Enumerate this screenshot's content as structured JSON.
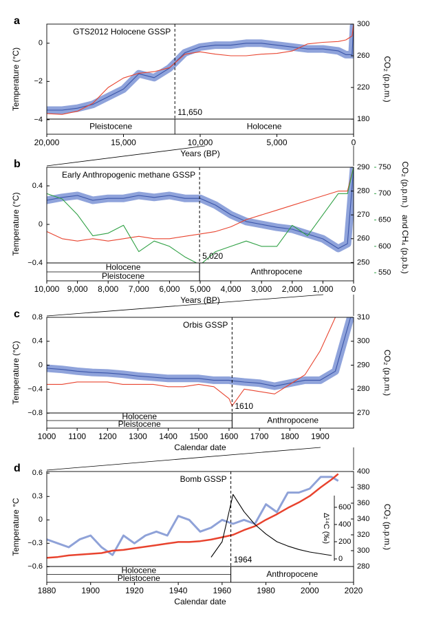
{
  "chart_data": [
    {
      "type": "line",
      "label": "a",
      "annotation": "GTS2012 Holocene GSSP",
      "x_label": "Years (BP)",
      "y_label": "Temperature (°C)",
      "y2_label": "CO₂ (p.p.m.)",
      "y_color": "#4a6bc4",
      "y2_color": "#e8432e",
      "xlim": [
        20000,
        0
      ],
      "xticks": [
        {
          "value": 20000,
          "label": "20,000"
        },
        {
          "value": 15000,
          "label": "15,000"
        },
        {
          "value": 10000,
          "label": "10,000"
        },
        {
          "value": 5000,
          "label": "5,000"
        },
        0
      ],
      "ylim": [
        -4.76,
        1.0
      ],
      "yticks": [
        {
          "value": -4,
          "label": "−4"
        },
        {
          "value": -2,
          "label": "−2"
        },
        0
      ],
      "y2lim": [
        161,
        300
      ],
      "y2ticks": [
        180,
        220,
        260,
        300
      ],
      "marker": {
        "value": 11650,
        "label": "11,650"
      },
      "regions": [
        {
          "label": "Pleistocene",
          "from": 20000,
          "to": 11650
        },
        {
          "label": "Holocene",
          "from": 11650,
          "to": 0
        }
      ],
      "x": [
        20000,
        19000,
        18000,
        17000,
        16000,
        15000,
        14000,
        13000,
        12000,
        11000,
        10000,
        9000,
        8000,
        7000,
        6000,
        5000,
        4000,
        3000,
        2000,
        1000,
        500,
        100,
        0
      ],
      "series": [
        {
          "color": "#3b55a8",
          "halo_color": "#8fa3db",
          "axis": "y",
          "values": [
            -3.5,
            -3.5,
            -3.4,
            -3.2,
            -2.8,
            -2.4,
            -1.6,
            -1.8,
            -1.3,
            -0.5,
            -0.2,
            -0.1,
            -0.1,
            0,
            0,
            -0.1,
            -0.2,
            -0.3,
            -0.3,
            -0.4,
            -0.6,
            -0.6,
            0.9
          ]
        },
        {
          "color": "#e8432e",
          "axis": "y2",
          "values": [
            187,
            186,
            190,
            200,
            220,
            232,
            238,
            240,
            245,
            262,
            265,
            262,
            260,
            260,
            262,
            263,
            266,
            275,
            277,
            278,
            280,
            285,
            300
          ]
        }
      ]
    },
    {
      "type": "line",
      "label": "b",
      "annotation": "Early Anthropogenic methane GSSP",
      "x_label": "Years (BP)",
      "y_label": "Temperature (°C)",
      "y2_label": "CO₂ (p.p.m.)",
      "y2_y3_joiner": "and",
      "y3_label": "CH₄ (p.p.b.)",
      "y_color": "#4a6bc4",
      "y2_color": "#e8432e",
      "y3_color": "#2ea043",
      "xlim": [
        10000,
        0
      ],
      "xticks": [
        {
          "value": 10000,
          "label": "10,000"
        },
        {
          "value": 9000,
          "label": "9,000"
        },
        {
          "value": 8000,
          "label": "8,000"
        },
        {
          "value": 7000,
          "label": "7,000"
        },
        {
          "value": 6000,
          "label": "6,000"
        },
        {
          "value": 5000,
          "label": "5,000"
        },
        {
          "value": 4000,
          "label": "4,000"
        },
        {
          "value": 3000,
          "label": "3,000"
        },
        {
          "value": 2000,
          "label": "2,000"
        },
        {
          "value": 1000,
          "label": "1,000"
        },
        0
      ],
      "ylim": [
        -0.586,
        0.593
      ],
      "yticks": [
        {
          "value": -0.4,
          "label": "−0.4"
        },
        0,
        0.4
      ],
      "y2lim": [
        242.3,
        290
      ],
      "y2ticks": [
        250,
        260,
        270,
        280,
        290
      ],
      "y3lim": [
        534.6,
        750
      ],
      "y3ticks": [
        550,
        600,
        650,
        700,
        750
      ],
      "marker": {
        "value": 5020,
        "label": "5,020"
      },
      "regions": [
        {
          "label": "Holocene",
          "from": 10000,
          "to": 5020
        },
        {
          "label": "Pleistocene",
          "from": 10000,
          "to": 5020
        },
        {
          "label": "Anthropocene",
          "from": 5020,
          "to": 0
        }
      ],
      "x": [
        10000,
        9500,
        9000,
        8500,
        8000,
        7500,
        7000,
        6500,
        6000,
        5500,
        5000,
        4500,
        4000,
        3500,
        3000,
        2500,
        2000,
        1500,
        1000,
        500,
        200,
        0
      ],
      "series": [
        {
          "color": "#3b55a8",
          "halo_color": "#8fa3db",
          "axis": "y",
          "values": [
            0.25,
            0.28,
            0.3,
            0.25,
            0.27,
            0.27,
            0.3,
            0.28,
            0.3,
            0.27,
            0.27,
            0.2,
            0.1,
            0.03,
            0,
            -0.03,
            -0.05,
            -0.1,
            -0.15,
            -0.25,
            -0.2,
            0.58
          ]
        },
        {
          "color": "#e8432e",
          "axis": "y2",
          "values": [
            263,
            260,
            259,
            260,
            259,
            260,
            261,
            260,
            260,
            261,
            262,
            263,
            265,
            268,
            270,
            272,
            274,
            276,
            278,
            280,
            280,
            290
          ]
        },
        {
          "color": "#2ea043",
          "axis": "y3",
          "values": [
            700,
            690,
            660,
            620,
            625,
            640,
            590,
            610,
            600,
            580,
            565,
            590,
            600,
            610,
            600,
            600,
            640,
            620,
            660,
            700,
            700,
            750
          ]
        }
      ]
    },
    {
      "type": "line",
      "label": "c",
      "annotation": "Orbis GSSP",
      "x_label": "Calendar date",
      "y_label": "Temperature (°C)",
      "y2_label": "CO₂ (p.p.m.)",
      "y_color": "#4a6bc4",
      "y2_color": "#e8432e",
      "xlim": [
        1000,
        2010
      ],
      "xticks": [
        1000,
        1100,
        1200,
        1300,
        1400,
        1500,
        1600,
        1700,
        1800,
        1900
      ],
      "ylim": [
        -1.05,
        0.8
      ],
      "yticks": [
        {
          "value": -0.8,
          "label": "−0.8"
        },
        {
          "value": -0.4,
          "label": "−0.4"
        },
        0,
        0.4,
        0.8
      ],
      "y2lim": [
        263.7,
        310
      ],
      "y2ticks": [
        270,
        280,
        290,
        300,
        310
      ],
      "marker": 1610,
      "regions": [
        {
          "label": "Holocene",
          "from": 1000,
          "to": 1610
        },
        {
          "label": "Pleistocene",
          "from": 1000,
          "to": 1610
        },
        {
          "label": "Anthropocene",
          "from": 1610,
          "to": 2010
        }
      ],
      "x": [
        1000,
        1050,
        1100,
        1150,
        1200,
        1250,
        1300,
        1350,
        1400,
        1450,
        1500,
        1550,
        1600,
        1610,
        1650,
        1700,
        1750,
        1800,
        1850,
        1900,
        1950,
        2000
      ],
      "series": [
        {
          "color": "#3b55a8",
          "halo_color": "#8fa3db",
          "axis": "y",
          "values": [
            -0.05,
            -0.07,
            -0.1,
            -0.12,
            -0.13,
            -0.15,
            -0.18,
            -0.2,
            -0.22,
            -0.22,
            -0.22,
            -0.25,
            -0.25,
            -0.26,
            -0.28,
            -0.3,
            -0.35,
            -0.3,
            -0.25,
            -0.25,
            -0.1,
            0.8
          ]
        },
        {
          "color": "#e8432e",
          "axis": "y2",
          "values": [
            282,
            282,
            283,
            283,
            283,
            282,
            282,
            282,
            281,
            281,
            282,
            281,
            276,
            273,
            280,
            279,
            278,
            282,
            286,
            296,
            310,
            null
          ]
        }
      ]
    },
    {
      "type": "line",
      "label": "d",
      "annotation": "Bomb GSSP",
      "x_label": "Calendar date",
      "y_label": "Temperature °C",
      "y2_label": "CO₂ (p.p.m.)",
      "y3_label": "Δ¹⁴C (‰)",
      "y_color": "#4a6bc4",
      "y2_color": "#e8432e",
      "y3_color": "#000000",
      "xlim": [
        1880,
        2020
      ],
      "xticks": [
        1880,
        1900,
        1920,
        1940,
        1960,
        1980,
        2000,
        2020
      ],
      "ylim": [
        -0.8,
        0.62
      ],
      "yticks": [
        {
          "value": -0.6,
          "label": "−0.6"
        },
        {
          "value": -0.3,
          "label": "−0.3"
        },
        0,
        0.3,
        0.6
      ],
      "y2lim": [
        260,
        400
      ],
      "y2ticks": [
        280,
        300,
        320,
        340,
        360,
        380,
        400
      ],
      "y3lim": [
        -272,
        1016
      ],
      "y3ticks": [
        0,
        200,
        400,
        600
      ],
      "marker": 1964,
      "regions": [
        {
          "label": "Holocene",
          "from": 1880,
          "to": 1964
        },
        {
          "label": "Pleistocene",
          "from": 1880,
          "to": 1964
        },
        {
          "label": "Anthropocene",
          "from": 1964,
          "to": 2020
        }
      ],
      "x": [
        1880,
        1885,
        1890,
        1895,
        1900,
        1905,
        1910,
        1915,
        1920,
        1925,
        1930,
        1935,
        1940,
        1945,
        1950,
        1955,
        1960,
        1965,
        1970,
        1975,
        1980,
        1985,
        1990,
        1995,
        2000,
        2005,
        2010,
        2013
      ],
      "series": [
        {
          "color": "#8fa2d8",
          "axis": "y",
          "width": 3,
          "values": [
            -0.25,
            -0.3,
            -0.35,
            -0.25,
            -0.2,
            -0.35,
            -0.45,
            -0.2,
            -0.3,
            -0.2,
            -0.15,
            -0.2,
            0.05,
            0,
            -0.15,
            -0.1,
            0,
            -0.05,
            0,
            -0.05,
            0.2,
            0.1,
            0.35,
            0.35,
            0.4,
            0.55,
            0.55,
            0.5
          ]
        },
        {
          "color": "#e8432e",
          "axis": "y2",
          "width": 2.5,
          "values": [
            291,
            292,
            294,
            295,
            296,
            297,
            300,
            301,
            303,
            305,
            307,
            309,
            311,
            311,
            312,
            314,
            317,
            320,
            326,
            331,
            339,
            346,
            354,
            361,
            369,
            380,
            390,
            397
          ]
        },
        {
          "color": "#000000",
          "axis": "y3",
          "values": [
            null,
            null,
            null,
            null,
            null,
            null,
            null,
            null,
            null,
            null,
            null,
            null,
            null,
            null,
            null,
            20,
            200,
            750,
            550,
            400,
            290,
            200,
            150,
            110,
            80,
            60,
            40,
            null
          ]
        }
      ]
    }
  ]
}
